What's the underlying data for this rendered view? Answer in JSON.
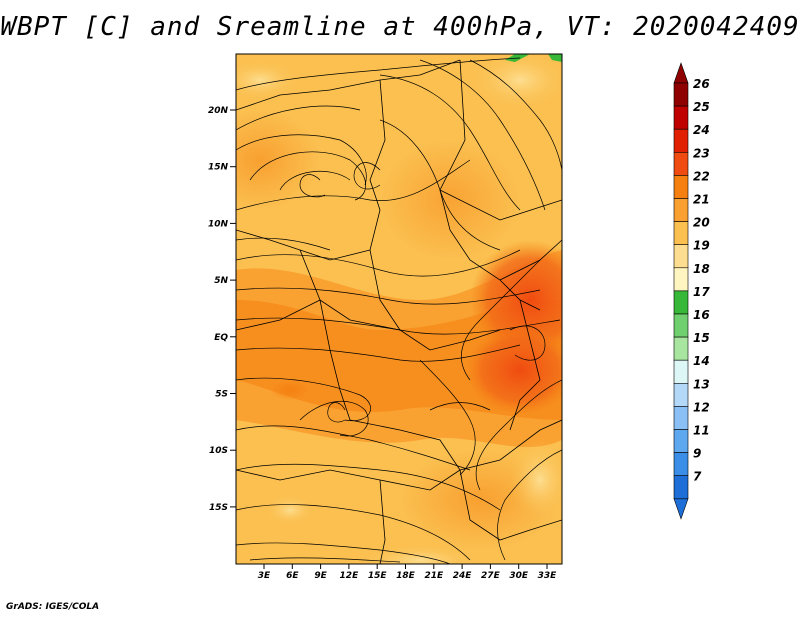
{
  "title": "WBPT [C] and Sreamline at 400hPa, VT: 2020042409",
  "footer": "GrADS: IGES/COLA",
  "map": {
    "lat_ticks": [
      "20N",
      "15N",
      "10N",
      "5N",
      "EQ",
      "5S",
      "10S",
      "15S"
    ],
    "lon_ticks": [
      "3E",
      "6E",
      "9E",
      "12E",
      "15E",
      "18E",
      "21E",
      "24E",
      "27E",
      "30E",
      "33E"
    ]
  },
  "colorbar": {
    "labels": [
      "26",
      "25",
      "24",
      "23",
      "22",
      "21",
      "20",
      "19",
      "18",
      "17",
      "16",
      "15",
      "14",
      "13",
      "12",
      "11",
      "9",
      "7"
    ],
    "colors": [
      "#8f0000",
      "#c00000",
      "#e02000",
      "#f04b10",
      "#f58010",
      "#f9a030",
      "#fbc050",
      "#fdde90",
      "#fff5c0",
      "#38b838",
      "#70d070",
      "#a8e6a0",
      "#ddf6f6",
      "#b4d8f8",
      "#8ac0f6",
      "#5ea8f0",
      "#3a8ee8",
      "#1e6ed8"
    ],
    "top_arrow_color": "#8f0000",
    "bottom_arrow_color": "#1e6ed8"
  }
}
